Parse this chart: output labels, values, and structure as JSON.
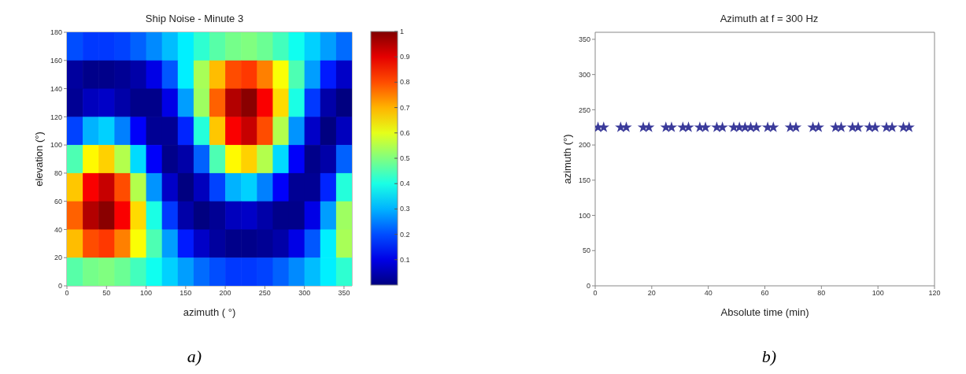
{
  "chart_data": [
    {
      "type": "heatmap",
      "title": "Ship Noise - Minute 3",
      "xlabel": "azimuth ( °)",
      "ylabel": "elevation (°)",
      "annotations": [
        "a)"
      ],
      "x": [
        10,
        30,
        50,
        70,
        90,
        110,
        130,
        150,
        170,
        190,
        210,
        230,
        250,
        270,
        290,
        310,
        330,
        350
      ],
      "y": [
        170,
        150,
        130,
        110,
        90,
        70,
        50,
        30,
        10
      ],
      "cells": [
        [
          0.2,
          0.18,
          0.18,
          0.19,
          0.22,
          0.26,
          0.31,
          0.36,
          0.42,
          0.46,
          0.49,
          0.5,
          0.48,
          0.44,
          0.39,
          0.33,
          0.28,
          0.23
        ],
        [
          0.03,
          0.01,
          0.01,
          0.02,
          0.04,
          0.1,
          0.21,
          0.36,
          0.54,
          0.69,
          0.8,
          0.82,
          0.75,
          0.62,
          0.45,
          0.28,
          0.15,
          0.07
        ],
        [
          0.02,
          0.06,
          0.07,
          0.04,
          0.01,
          0.01,
          0.1,
          0.28,
          0.53,
          0.78,
          0.95,
          0.99,
          0.88,
          0.66,
          0.4,
          0.18,
          0.04,
          0.0
        ],
        [
          0.19,
          0.3,
          0.33,
          0.25,
          0.12,
          0.02,
          0.02,
          0.16,
          0.41,
          0.68,
          0.88,
          0.93,
          0.8,
          0.55,
          0.27,
          0.07,
          0.0,
          0.06
        ],
        [
          0.45,
          0.63,
          0.67,
          0.55,
          0.34,
          0.12,
          0.01,
          0.04,
          0.22,
          0.45,
          0.63,
          0.67,
          0.55,
          0.34,
          0.12,
          0.01,
          0.04,
          0.22
        ],
        [
          0.68,
          0.88,
          0.93,
          0.8,
          0.55,
          0.27,
          0.07,
          0.0,
          0.06,
          0.19,
          0.3,
          0.33,
          0.25,
          0.12,
          0.02,
          0.02,
          0.16,
          0.41
        ],
        [
          0.78,
          0.95,
          0.99,
          0.88,
          0.66,
          0.4,
          0.18,
          0.04,
          0.0,
          0.02,
          0.06,
          0.07,
          0.04,
          0.01,
          0.01,
          0.1,
          0.28,
          0.53
        ],
        [
          0.69,
          0.8,
          0.82,
          0.75,
          0.62,
          0.45,
          0.28,
          0.15,
          0.07,
          0.03,
          0.01,
          0.01,
          0.02,
          0.04,
          0.1,
          0.21,
          0.36,
          0.54
        ],
        [
          0.46,
          0.49,
          0.5,
          0.48,
          0.44,
          0.39,
          0.33,
          0.28,
          0.23,
          0.2,
          0.18,
          0.18,
          0.19,
          0.22,
          0.26,
          0.31,
          0.36,
          0.42
        ]
      ],
      "xlim": [
        0,
        360
      ],
      "xticks": [
        0,
        50,
        100,
        150,
        200,
        250,
        300,
        350
      ],
      "ylim": [
        0,
        180
      ],
      "yticks": [
        0,
        20,
        40,
        60,
        80,
        100,
        120,
        140,
        160,
        180
      ],
      "clim": [
        0,
        1
      ],
      "cticks": [
        0.1,
        0.2,
        0.3,
        0.4,
        0.5,
        0.6,
        0.7,
        0.8,
        0.9,
        1
      ]
    },
    {
      "type": "scatter",
      "title": "Azimuth  at f = 300 Hz",
      "xlabel": "Absolute time (min)",
      "ylabel": "azimuth (°)",
      "annotations": [
        "b)"
      ],
      "x": [
        1,
        3,
        9,
        11,
        17,
        19,
        25,
        27,
        31,
        33,
        37,
        39,
        43,
        45,
        49,
        51,
        53,
        55,
        57,
        61,
        63,
        69,
        71,
        77,
        79,
        85,
        87,
        91,
        93,
        97,
        99,
        103,
        105,
        109,
        111
      ],
      "values": [
        225,
        225,
        225,
        225,
        225,
        225,
        225,
        225,
        225,
        225,
        225,
        225,
        225,
        225,
        225,
        225,
        225,
        225,
        225,
        225,
        225,
        225,
        225,
        225,
        225,
        225,
        225,
        225,
        225,
        225,
        225,
        225,
        225,
        225,
        225
      ],
      "color": "#3a3a9a",
      "marker": "star",
      "xlim": [
        0,
        120
      ],
      "xticks": [
        0,
        20,
        40,
        60,
        80,
        100,
        120
      ],
      "ylim": [
        0,
        360
      ],
      "yticks": [
        0,
        50,
        100,
        150,
        200,
        250,
        300,
        350
      ]
    }
  ]
}
